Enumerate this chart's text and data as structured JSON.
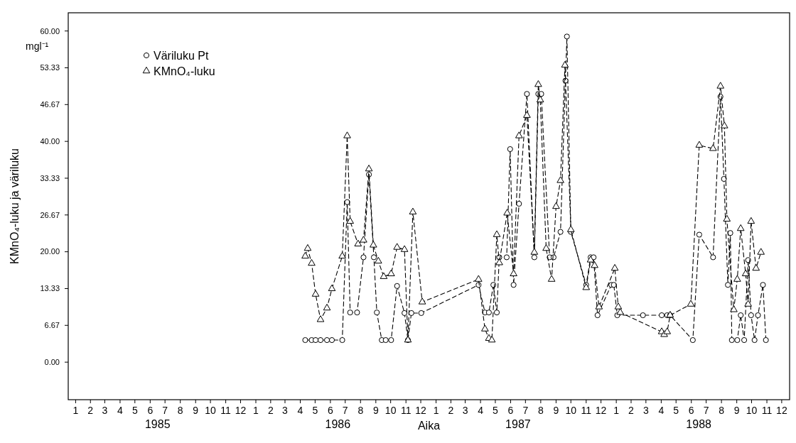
{
  "chart_data": {
    "type": "line",
    "xlabel": "Aika",
    "ylabel": "KMnO₄-luku ja väriluku",
    "legend": "top left",
    "line_style": "dashed",
    "grid": false,
    "xlim": [
      "1985-01-01",
      "1989-01-01"
    ],
    "ylim": [
      -6.8,
      63.3
    ],
    "yticks": [
      {
        "value": 0,
        "label": "0.00"
      },
      {
        "value": 6.67,
        "label": "6.67"
      },
      {
        "value": 13.33,
        "label": "13.33"
      },
      {
        "value": 20,
        "label": "20.00"
      },
      {
        "value": 26.67,
        "label": "26.67"
      },
      {
        "value": 33.33,
        "label": "33.33"
      },
      {
        "value": 40,
        "label": "40.00"
      },
      {
        "value": 46.67,
        "label": "46.67"
      },
      {
        "value": 53.33,
        "label": "53.33"
      },
      {
        "value": 60,
        "label": "60.00"
      }
    ],
    "xticks": [
      {
        "value": "1985-01-16",
        "label": "1"
      },
      {
        "value": "1985-02-15",
        "label": "2"
      },
      {
        "value": "1985-03-16",
        "label": "3"
      },
      {
        "value": "1985-04-16",
        "label": "4"
      },
      {
        "value": "1985-05-16",
        "label": "5"
      },
      {
        "value": "1985-06-16",
        "label": "6"
      },
      {
        "value": "1985-07-16",
        "label": "7"
      },
      {
        "value": "1985-08-16",
        "label": "8"
      },
      {
        "value": "1985-09-16",
        "label": "9"
      },
      {
        "value": "1985-10-16",
        "label": "10"
      },
      {
        "value": "1985-11-16",
        "label": "11"
      },
      {
        "value": "1985-12-16",
        "label": "12"
      },
      {
        "value": "1986-01-16",
        "label": "1"
      },
      {
        "value": "1986-02-15",
        "label": "2"
      },
      {
        "value": "1986-03-16",
        "label": "3"
      },
      {
        "value": "1986-04-16",
        "label": "4"
      },
      {
        "value": "1986-05-16",
        "label": "5"
      },
      {
        "value": "1986-06-16",
        "label": "6"
      },
      {
        "value": "1986-07-16",
        "label": "7"
      },
      {
        "value": "1986-08-16",
        "label": "8"
      },
      {
        "value": "1986-09-16",
        "label": "9"
      },
      {
        "value": "1986-10-16",
        "label": "10"
      },
      {
        "value": "1986-11-16",
        "label": "11"
      },
      {
        "value": "1986-12-16",
        "label": "12"
      },
      {
        "value": "1987-01-16",
        "label": "1"
      },
      {
        "value": "1987-02-15",
        "label": "2"
      },
      {
        "value": "1987-03-16",
        "label": "3"
      },
      {
        "value": "1987-04-16",
        "label": "4"
      },
      {
        "value": "1987-05-16",
        "label": "5"
      },
      {
        "value": "1987-06-16",
        "label": "6"
      },
      {
        "value": "1987-07-16",
        "label": "7"
      },
      {
        "value": "1987-08-16",
        "label": "8"
      },
      {
        "value": "1987-09-16",
        "label": "9"
      },
      {
        "value": "1987-10-16",
        "label": "10"
      },
      {
        "value": "1987-11-16",
        "label": "11"
      },
      {
        "value": "1987-12-16",
        "label": "12"
      },
      {
        "value": "1988-01-16",
        "label": "1"
      },
      {
        "value": "1988-02-15",
        "label": "2"
      },
      {
        "value": "1988-03-16",
        "label": "3"
      },
      {
        "value": "1988-04-16",
        "label": "4"
      },
      {
        "value": "1988-05-16",
        "label": "5"
      },
      {
        "value": "1988-06-16",
        "label": "6"
      },
      {
        "value": "1988-07-16",
        "label": "7"
      },
      {
        "value": "1988-08-16",
        "label": "8"
      },
      {
        "value": "1988-09-16",
        "label": "9"
      },
      {
        "value": "1988-10-16",
        "label": "10"
      },
      {
        "value": "1988-11-16",
        "label": "11"
      },
      {
        "value": "1988-12-16",
        "label": "12"
      }
    ],
    "annotations": [
      "mgl⁻¹",
      "1985",
      "1986",
      "1987",
      "1988"
    ],
    "series": [
      {
        "name": "Väriluku Pt",
        "color": "#000000",
        "marker": "circle",
        "x": [
          "1986-04-26",
          "1986-05-09",
          "1986-05-17",
          "1986-05-27",
          "1986-06-09",
          "1986-06-19",
          "1986-07-10",
          "1986-07-20",
          "1986-07-26",
          "1986-08-09",
          "1986-08-22",
          "1986-09-02",
          "1986-09-12",
          "1986-09-18",
          "1986-09-28",
          "1986-10-06",
          "1986-10-17",
          "1986-10-29",
          "1986-11-13",
          "1986-11-20",
          "1986-11-27",
          "1986-12-17",
          "1987-04-12",
          "1987-04-25",
          "1987-05-03",
          "1987-05-12",
          "1987-05-19",
          "1987-05-24",
          "1987-06-08",
          "1987-06-15",
          "1987-06-22",
          "1987-07-03",
          "1987-07-19",
          "1987-08-03",
          "1987-08-11",
          "1987-08-17",
          "1987-09-03",
          "1987-09-11",
          "1987-09-25",
          "1987-10-05",
          "1987-10-08",
          "1987-10-16",
          "1987-11-16",
          "1987-11-25",
          "1987-12-01",
          "1987-12-09",
          "1988-01-06",
          "1988-01-11",
          "1988-01-18",
          "1988-03-10",
          "1988-04-17",
          "1988-04-28",
          "1988-05-04",
          "1988-06-19",
          "1988-07-02",
          "1988-07-30",
          "1988-08-14",
          "1988-08-21",
          "1988-08-29",
          "1988-09-03",
          "1988-09-06",
          "1988-09-17",
          "1988-09-24",
          "1988-10-01",
          "1988-10-09",
          "1988-10-15",
          "1988-10-22",
          "1988-10-29",
          "1988-11-08",
          "1988-11-14"
        ],
        "values": [
          4,
          4,
          4,
          4,
          4,
          4,
          4,
          29,
          9,
          9,
          19,
          34,
          19,
          9,
          4,
          4,
          4,
          13.8,
          8.9,
          4,
          8.9,
          8.9,
          14,
          9,
          9,
          14,
          9,
          19,
          19,
          38.6,
          14,
          28.7,
          48.6,
          19,
          48.6,
          48.6,
          19,
          19,
          23.6,
          51,
          59,
          23.6,
          14,
          19,
          19,
          8.5,
          14,
          14,
          8.5,
          8.5,
          8.5,
          8.5,
          8.5,
          4,
          23.1,
          19,
          48.1,
          33.2,
          14,
          23.4,
          4,
          4,
          8.5,
          4,
          18.5,
          8.5,
          4,
          8.5,
          14,
          4
        ]
      },
      {
        "name": "KMnO₄-luku",
        "color": "#000000",
        "marker": "triangle",
        "x": [
          "1986-04-26",
          "1986-05-01",
          "1986-05-09",
          "1986-05-17",
          "1986-05-27",
          "1986-06-09",
          "1986-06-19",
          "1986-07-10",
          "1986-07-20",
          "1986-07-26",
          "1986-08-11",
          "1986-08-22",
          "1986-09-02",
          "1986-09-11",
          "1986-09-21",
          "1986-10-02",
          "1986-10-17",
          "1986-10-29",
          "1986-11-13",
          "1986-11-20",
          "1986-11-30",
          "1986-12-19",
          "1987-04-12",
          "1987-04-25",
          "1987-05-03",
          "1987-05-09",
          "1987-05-19",
          "1987-05-24",
          "1987-06-09",
          "1987-06-22",
          "1987-07-03",
          "1987-07-19",
          "1987-08-03",
          "1987-08-11",
          "1987-08-15",
          "1987-08-27",
          "1987-09-07",
          "1987-09-16",
          "1987-09-25",
          "1987-10-04",
          "1987-10-16",
          "1987-11-16",
          "1987-11-25",
          "1987-12-03",
          "1987-12-12",
          "1988-01-13",
          "1988-01-20",
          "1988-01-24",
          "1988-04-17",
          "1988-04-22",
          "1988-04-28",
          "1988-05-04",
          "1988-06-15",
          "1988-07-02",
          "1988-07-30",
          "1988-08-14",
          "1988-08-22",
          "1988-08-27",
          "1988-09-10",
          "1988-09-17",
          "1988-09-24",
          "1988-10-04",
          "1988-10-09",
          "1988-10-15",
          "1988-10-25",
          "1988-11-04"
        ],
        "values": [
          19.2,
          20.6,
          17.9,
          12.3,
          7.7,
          9.8,
          13.3,
          19.2,
          41,
          25.5,
          21.4,
          22.1,
          35,
          21.2,
          18.3,
          15.5,
          16,
          20.8,
          20.4,
          4,
          27.2,
          10.9,
          15,
          6,
          4.3,
          4,
          23.1,
          18,
          27,
          16,
          41,
          44.7,
          19.9,
          50.3,
          47.5,
          20.6,
          15,
          28.2,
          32.9,
          53.8,
          24,
          13.5,
          18.5,
          17.5,
          10,
          17,
          10,
          9,
          5.5,
          5,
          5.5,
          8.5,
          10.5,
          39.3,
          38.7,
          50,
          42.8,
          25.9,
          9.5,
          15,
          24.2,
          16,
          10.5,
          25.5,
          17,
          19.9
        ]
      }
    ]
  }
}
